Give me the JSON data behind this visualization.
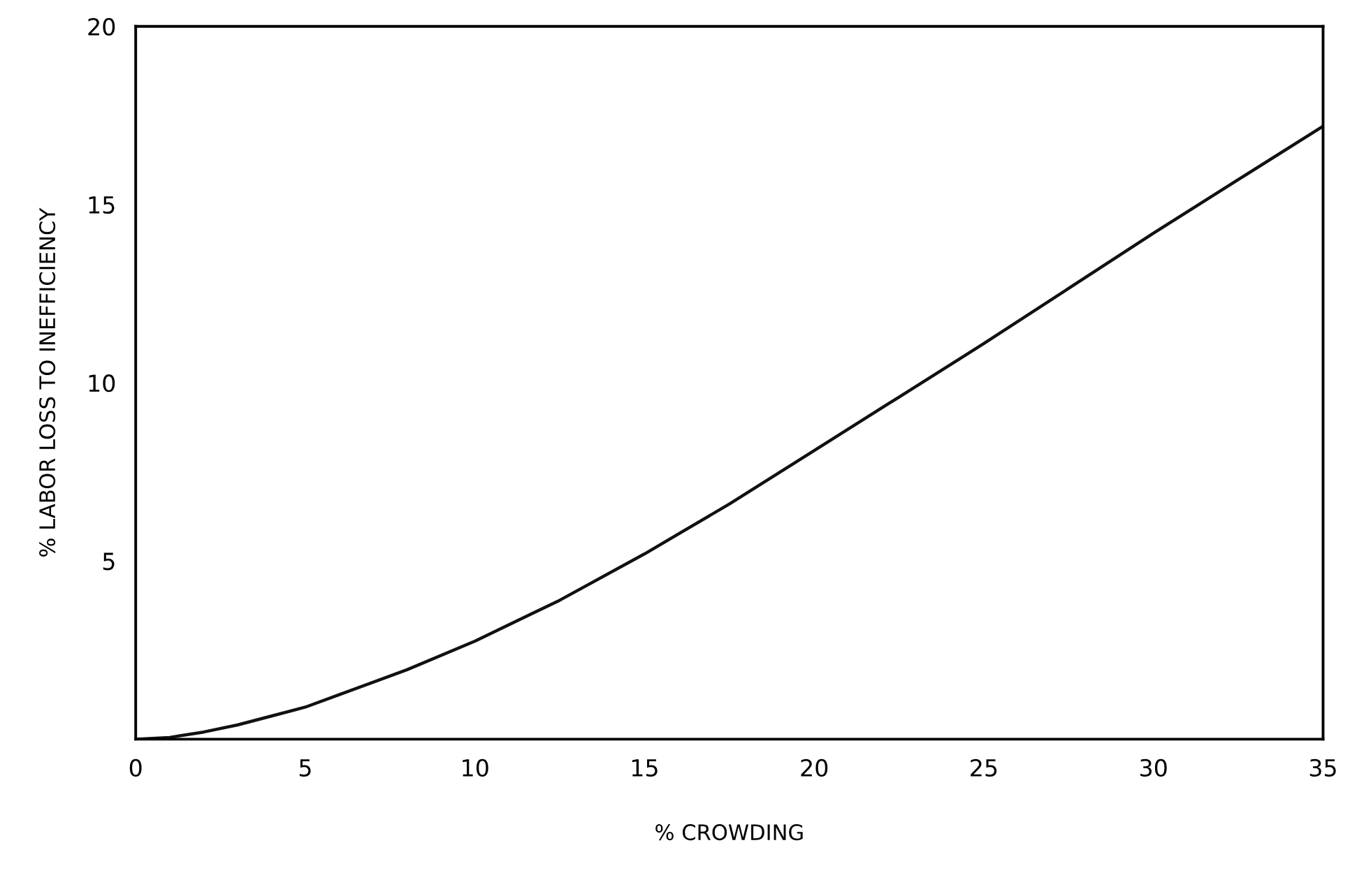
{
  "chart_data": {
    "type": "line",
    "xlabel": "% CROWDING",
    "ylabel": "% LABOR LOSS TO INEFFICIENCY",
    "x": [
      0,
      1,
      2,
      3,
      4,
      5,
      6,
      8,
      10,
      12.5,
      15,
      17.5,
      20,
      22.5,
      25,
      27.5,
      30,
      32.5,
      35
    ],
    "series": [
      {
        "color": "#111111",
        "values": [
          0,
          0.05,
          0.2,
          0.4,
          0.65,
          0.9,
          1.25,
          1.95,
          2.75,
          3.9,
          5.2,
          6.6,
          8.1,
          9.6,
          11.1,
          12.65,
          14.2,
          15.7,
          17.2
        ]
      }
    ],
    "xlim": [
      0,
      35
    ],
    "ylim": [
      0,
      20
    ],
    "xticks": [
      0,
      5,
      10,
      15,
      20,
      25,
      30,
      35
    ],
    "yticks": [
      5,
      10,
      15,
      20
    ],
    "grid": false,
    "legend": false,
    "marker": "none",
    "line_style": "solid"
  }
}
